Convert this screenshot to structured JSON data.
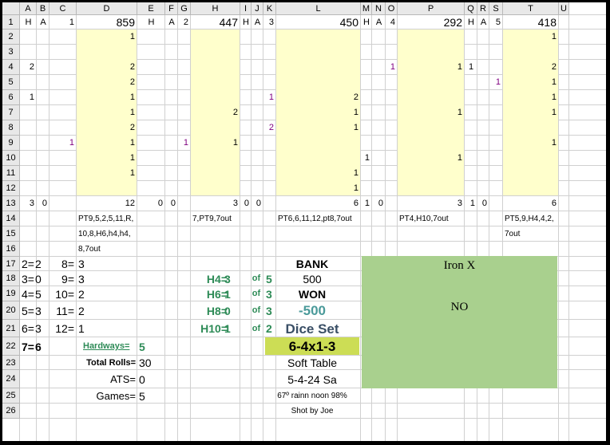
{
  "columns": [
    "A",
    "B",
    "C",
    "D",
    "E",
    "F",
    "G",
    "H",
    "I",
    "J",
    "K",
    "L",
    "M",
    "N",
    "O",
    "P",
    "Q",
    "R",
    "S",
    "T",
    "U"
  ],
  "rows": [
    "1",
    "2",
    "3",
    "4",
    "5",
    "6",
    "7",
    "8",
    "9",
    "10",
    "11",
    "12",
    "13",
    "14",
    "15",
    "16",
    "17",
    "18",
    "19",
    "20",
    "21",
    "22",
    "23",
    "24",
    "25",
    "26"
  ],
  "cells": [
    {
      "col": "A",
      "row": 1,
      "v": "H",
      "align": "c"
    },
    {
      "col": "B",
      "row": 1,
      "v": "A",
      "align": "c"
    },
    {
      "col": "C",
      "row": 1,
      "v": "1",
      "align": "r"
    },
    {
      "col": "D",
      "row": 1,
      "v": "859",
      "align": "r",
      "size": "big"
    },
    {
      "col": "E",
      "row": 1,
      "v": "H",
      "align": "c"
    },
    {
      "col": "F",
      "row": 1,
      "v": "A",
      "align": "c"
    },
    {
      "col": "G",
      "row": 1,
      "v": "2",
      "align": "r"
    },
    {
      "col": "H",
      "row": 1,
      "v": "447",
      "align": "r",
      "size": "big"
    },
    {
      "col": "I",
      "row": 1,
      "v": "H",
      "align": "c"
    },
    {
      "col": "J",
      "row": 1,
      "v": "A",
      "align": "c"
    },
    {
      "col": "K",
      "row": 1,
      "v": "3",
      "align": "r"
    },
    {
      "col": "L",
      "row": 1,
      "v": "450",
      "align": "r",
      "size": "big"
    },
    {
      "col": "M",
      "row": 1,
      "v": "H",
      "align": "c"
    },
    {
      "col": "N",
      "row": 1,
      "v": "A",
      "align": "c"
    },
    {
      "col": "O",
      "row": 1,
      "v": "4",
      "align": "r"
    },
    {
      "col": "P",
      "row": 1,
      "v": "292",
      "align": "r",
      "size": "big"
    },
    {
      "col": "Q",
      "row": 1,
      "v": "H",
      "align": "c"
    },
    {
      "col": "R",
      "row": 1,
      "v": "A",
      "align": "c"
    },
    {
      "col": "S",
      "row": 1,
      "v": "5",
      "align": "r"
    },
    {
      "col": "T",
      "row": 1,
      "v": "418",
      "align": "r",
      "size": "big"
    },
    {
      "col": "D",
      "row": 2,
      "v": "1",
      "align": "r"
    },
    {
      "col": "T",
      "row": 2,
      "v": "1",
      "align": "r"
    },
    {
      "col": "A",
      "row": 4,
      "v": "2",
      "align": "r"
    },
    {
      "col": "D",
      "row": 4,
      "v": "2",
      "align": "r"
    },
    {
      "col": "O",
      "row": 4,
      "v": "1",
      "align": "r",
      "color": "purple"
    },
    {
      "col": "P",
      "row": 4,
      "v": "1",
      "align": "r"
    },
    {
      "col": "Q",
      "row": 4,
      "v": "1",
      "align": "c"
    },
    {
      "col": "T",
      "row": 4,
      "v": "2",
      "align": "r"
    },
    {
      "col": "D",
      "row": 5,
      "v": "2",
      "align": "r"
    },
    {
      "col": "S",
      "row": 5,
      "v": "1",
      "align": "r",
      "color": "purple"
    },
    {
      "col": "T",
      "row": 5,
      "v": "1",
      "align": "r"
    },
    {
      "col": "A",
      "row": 6,
      "v": "1",
      "align": "r"
    },
    {
      "col": "D",
      "row": 6,
      "v": "1",
      "align": "r"
    },
    {
      "col": "K",
      "row": 6,
      "v": "1",
      "align": "r",
      "color": "purple"
    },
    {
      "col": "L",
      "row": 6,
      "v": "2",
      "align": "r"
    },
    {
      "col": "T",
      "row": 6,
      "v": "1",
      "align": "r"
    },
    {
      "col": "D",
      "row": 7,
      "v": "1",
      "align": "r"
    },
    {
      "col": "H",
      "row": 7,
      "v": "2",
      "align": "r"
    },
    {
      "col": "L",
      "row": 7,
      "v": "1",
      "align": "r"
    },
    {
      "col": "P",
      "row": 7,
      "v": "1",
      "align": "r"
    },
    {
      "col": "T",
      "row": 7,
      "v": "1",
      "align": "r"
    },
    {
      "col": "D",
      "row": 8,
      "v": "2",
      "align": "r"
    },
    {
      "col": "K",
      "row": 8,
      "v": "2",
      "align": "r",
      "color": "purple"
    },
    {
      "col": "L",
      "row": 8,
      "v": "1",
      "align": "r"
    },
    {
      "col": "C",
      "row": 9,
      "v": "1",
      "align": "r",
      "color": "purple"
    },
    {
      "col": "D",
      "row": 9,
      "v": "1",
      "align": "r"
    },
    {
      "col": "G",
      "row": 9,
      "v": "1",
      "align": "r",
      "color": "purple"
    },
    {
      "col": "H",
      "row": 9,
      "v": "1",
      "align": "r"
    },
    {
      "col": "T",
      "row": 9,
      "v": "1",
      "align": "r"
    },
    {
      "col": "D",
      "row": 10,
      "v": "1",
      "align": "r"
    },
    {
      "col": "M",
      "row": 10,
      "v": "1",
      "align": "r"
    },
    {
      "col": "P",
      "row": 10,
      "v": "1",
      "align": "r"
    },
    {
      "col": "D",
      "row": 11,
      "v": "1",
      "align": "r"
    },
    {
      "col": "L",
      "row": 11,
      "v": "1",
      "align": "r"
    },
    {
      "col": "L",
      "row": 12,
      "v": "1",
      "align": "r"
    },
    {
      "col": "A",
      "row": 13,
      "v": "3",
      "align": "r"
    },
    {
      "col": "B",
      "row": 13,
      "v": "0",
      "align": "r"
    },
    {
      "col": "D",
      "row": 13,
      "v": "12",
      "align": "r"
    },
    {
      "col": "E",
      "row": 13,
      "v": "0",
      "align": "r"
    },
    {
      "col": "F",
      "row": 13,
      "v": "0",
      "align": "r"
    },
    {
      "col": "H",
      "row": 13,
      "v": "3",
      "align": "r"
    },
    {
      "col": "I",
      "row": 13,
      "v": "0",
      "align": "r"
    },
    {
      "col": "J",
      "row": 13,
      "v": "0",
      "align": "r"
    },
    {
      "col": "L",
      "row": 13,
      "v": "6",
      "align": "r"
    },
    {
      "col": "M",
      "row": 13,
      "v": "1",
      "align": "r"
    },
    {
      "col": "N",
      "row": 13,
      "v": "0",
      "align": "r"
    },
    {
      "col": "P",
      "row": 13,
      "v": "3",
      "align": "r"
    },
    {
      "col": "Q",
      "row": 13,
      "v": "1",
      "align": "r"
    },
    {
      "col": "R",
      "row": 13,
      "v": "0",
      "align": "r"
    },
    {
      "col": "T",
      "row": 13,
      "v": "6",
      "align": "r"
    },
    {
      "col": "D",
      "row": 14,
      "v": "PT9,5,2,5,11,R,",
      "align": "l",
      "size": "small"
    },
    {
      "col": "H",
      "row": 14,
      "v": "7,PT9,7out",
      "align": "l",
      "size": "small"
    },
    {
      "col": "L",
      "row": 14,
      "v": "PT6,6,11,12,pt8,7out",
      "align": "l",
      "size": "small"
    },
    {
      "col": "P",
      "row": 14,
      "v": "PT4,H10,7out",
      "align": "l",
      "size": "small"
    },
    {
      "col": "T",
      "row": 14,
      "v": "PT5,9,H4,4,2,",
      "align": "l",
      "size": "small"
    },
    {
      "col": "D",
      "row": 15,
      "v": "10,8,H6,h4,h4,",
      "align": "l",
      "size": "small"
    },
    {
      "col": "T",
      "row": 15,
      "v": "7out",
      "align": "l",
      "size": "small"
    },
    {
      "col": "D",
      "row": 16,
      "v": "8,7out",
      "align": "l",
      "size": "small"
    },
    {
      "col": "A",
      "row": 17,
      "v": "2=",
      "align": "l",
      "size": "big"
    },
    {
      "col": "B",
      "row": 17,
      "v": "2",
      "align": "l",
      "size": "big"
    },
    {
      "col": "C",
      "row": 17,
      "v": "8=",
      "align": "r",
      "size": "big"
    },
    {
      "col": "D",
      "row": 17,
      "v": "3",
      "align": "l",
      "size": "big"
    },
    {
      "col": "L",
      "row": 17,
      "v": "BANK",
      "align": "c",
      "size": "big",
      "bold": true
    },
    {
      "col": "A",
      "row": 18,
      "v": "3=",
      "align": "l",
      "size": "big"
    },
    {
      "col": "B",
      "row": 18,
      "v": "0",
      "align": "l",
      "size": "big"
    },
    {
      "col": "C",
      "row": 18,
      "v": "9=",
      "align": "r",
      "size": "big"
    },
    {
      "col": "D",
      "row": 18,
      "v": "3",
      "align": "l",
      "size": "big"
    },
    {
      "col": "H",
      "row": 18,
      "v": "H4=",
      "align": "r",
      "size": "big",
      "color": "green"
    },
    {
      "col": "I",
      "row": 18,
      "v": "3",
      "align": "l",
      "size": "big",
      "color": "green"
    },
    {
      "col": "K",
      "row": 18,
      "v": "of",
      "align": "c",
      "color": "green"
    },
    {
      "col": "L",
      "row": 18,
      "v": "500",
      "align": "c",
      "size": "big"
    },
    {
      "col": "A",
      "row": 19,
      "v": "4=",
      "align": "l",
      "size": "big"
    },
    {
      "col": "B",
      "row": 19,
      "v": "5",
      "align": "l",
      "size": "big"
    },
    {
      "col": "C",
      "row": 19,
      "v": "10=",
      "align": "r",
      "size": "big"
    },
    {
      "col": "D",
      "row": 19,
      "v": "2",
      "align": "l",
      "size": "big"
    },
    {
      "col": "H",
      "row": 19,
      "v": "H6=",
      "align": "r",
      "size": "big",
      "color": "green"
    },
    {
      "col": "I",
      "row": 19,
      "v": "1",
      "align": "l",
      "size": "big",
      "color": "green"
    },
    {
      "col": "K",
      "row": 19,
      "v": "of",
      "align": "c",
      "color": "green"
    },
    {
      "col": "L",
      "row": 19,
      "v": "WON",
      "align": "c",
      "size": "big",
      "bold": true
    },
    {
      "col": "A",
      "row": 20,
      "v": "5=",
      "align": "l",
      "size": "big"
    },
    {
      "col": "B",
      "row": 20,
      "v": "3",
      "align": "l",
      "size": "big"
    },
    {
      "col": "C",
      "row": 20,
      "v": "11=",
      "align": "r",
      "size": "big"
    },
    {
      "col": "D",
      "row": 20,
      "v": "2",
      "align": "l",
      "size": "big"
    },
    {
      "col": "H",
      "row": 20,
      "v": "H8=",
      "align": "r",
      "size": "big",
      "color": "green"
    },
    {
      "col": "I",
      "row": 20,
      "v": "0",
      "align": "l",
      "size": "big",
      "color": "green"
    },
    {
      "col": "K",
      "row": 20,
      "v": "of",
      "align": "c",
      "color": "green"
    },
    {
      "col": "A",
      "row": 21,
      "v": "6=",
      "align": "l",
      "size": "big"
    },
    {
      "col": "B",
      "row": 21,
      "v": "3",
      "align": "l",
      "size": "big"
    },
    {
      "col": "C",
      "row": 21,
      "v": "12=",
      "align": "r",
      "size": "big"
    },
    {
      "col": "D",
      "row": 21,
      "v": "1",
      "align": "l",
      "size": "big"
    },
    {
      "col": "H",
      "row": 21,
      "v": "H10=",
      "align": "r",
      "size": "big",
      "color": "green"
    },
    {
      "col": "I",
      "row": 21,
      "v": "1",
      "align": "l",
      "size": "big",
      "color": "green"
    },
    {
      "col": "K",
      "row": 21,
      "v": "of",
      "align": "c",
      "color": "green"
    },
    {
      "col": "A",
      "row": 22,
      "v": "7=",
      "align": "l",
      "size": "big",
      "bold": true
    },
    {
      "col": "B",
      "row": 22,
      "v": "6",
      "align": "l",
      "size": "big",
      "bold": true
    },
    {
      "col": "L",
      "row": 23,
      "v": "Soft Table",
      "align": "c",
      "size": "big"
    },
    {
      "col": "L",
      "row": 26,
      "v": "Shot by Joe",
      "align": "c",
      "size": "small"
    }
  ],
  "of_totals": [
    {
      "row": 18,
      "v": "5"
    },
    {
      "row": 19,
      "v": "3"
    },
    {
      "row": 20,
      "v": "3"
    },
    {
      "row": 21,
      "v": "2"
    }
  ],
  "won_amount": "-500",
  "won_color": "#4a9a9a",
  "dice_set_label": "Dice Set",
  "dice_set_color": "#3a4f66",
  "dice_set_value": "6-4x1-3",
  "dice_set_bg": "#ccdd55",
  "hardways_label": "Hardways=",
  "hardways_value": "5",
  "total_rolls_label": "Total Rolls=",
  "total_rolls_value": "30",
  "ats_label": "ATS=",
  "ats_value": "0",
  "games_label": "Games=",
  "games_value": "5",
  "session_date": "5-4-24 Sa",
  "weather": "67º rainn noon 98%",
  "iron_title": "Iron X",
  "iron_status": "NO",
  "iron_bg": "#a9d08e",
  "yellow_bg": "#ffffcc"
}
